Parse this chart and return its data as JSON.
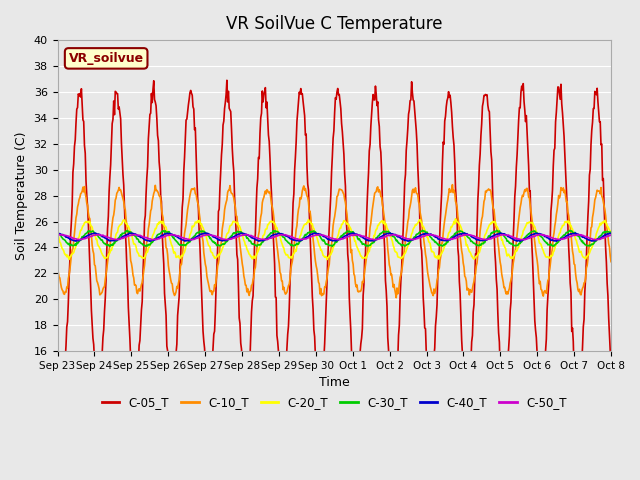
{
  "title": "VR SoilVue C Temperature",
  "xlabel": "Time",
  "ylabel": "Soil Temperature (C)",
  "ylim": [
    16,
    40
  ],
  "yticks": [
    16,
    18,
    20,
    22,
    24,
    26,
    28,
    30,
    32,
    34,
    36,
    38,
    40
  ],
  "background_color": "#e8e8e8",
  "annotation_label": "VR_soilvue",
  "series": {
    "C-05_T": {
      "color": "#cc0000"
    },
    "C-10_T": {
      "color": "#ff8c00"
    },
    "C-20_T": {
      "color": "#ffff00"
    },
    "C-30_T": {
      "color": "#00cc00"
    },
    "C-40_T": {
      "color": "#0000cc"
    },
    "C-50_T": {
      "color": "#cc00cc"
    }
  },
  "x_tick_labels": [
    "Sep 23",
    "Sep 24",
    "Sep 25",
    "Sep 26",
    "Sep 27",
    "Sep 28",
    "Sep 29",
    "Sep 30",
    "Oct 1",
    "Oct 2",
    "Oct 3",
    "Oct 4",
    "Oct 5",
    "Oct 6",
    "Oct 7",
    "Oct 8"
  ],
  "n_days": 15,
  "samples_per_day": 48,
  "legend_order": [
    "C-05_T",
    "C-10_T",
    "C-20_T",
    "C-30_T",
    "C-40_T",
    "C-50_T"
  ]
}
